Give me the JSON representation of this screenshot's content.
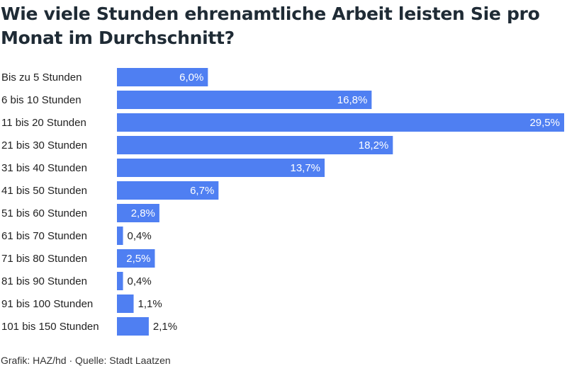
{
  "title": "Wie viele Stunden ehrenamtliche Arbeit leisten Sie pro Monat im Durchschnitt?",
  "footer": "Grafik: HAZ/hd · Quelle: Stadt Laatzen",
  "colors": {
    "bar": "#4f7ff2",
    "label_inside": "#ffffff",
    "label_outside": "#222222",
    "category_text": "#222222"
  },
  "chart_data": {
    "type": "bar",
    "orientation": "horizontal",
    "categories": [
      "Bis zu 5 Stunden",
      "6 bis 10 Stunden",
      "11 bis 20 Stunden",
      "21 bis 30 Stunden",
      "31 bis 40 Stunden",
      "41 bis 50 Stunden",
      "51 bis 60 Stunden",
      "61 bis 70 Stunden",
      "71 bis 80 Stunden",
      "81 bis 90 Stunden",
      "91 bis 100 Stunden",
      "101 bis 150 Stunden"
    ],
    "values": [
      6.0,
      16.8,
      29.5,
      18.2,
      13.7,
      6.7,
      2.8,
      0.4,
      2.5,
      0.4,
      1.1,
      2.1
    ],
    "value_labels": [
      "6,0%",
      "16,8%",
      "29,5%",
      "18,2%",
      "13,7%",
      "6,7%",
      "2,8%",
      "0,4%",
      "2,5%",
      "0,4%",
      "1,1%",
      "2,1%"
    ],
    "unit": "%",
    "xlim": [
      0,
      29.5
    ],
    "grid": false,
    "legend": "none"
  }
}
